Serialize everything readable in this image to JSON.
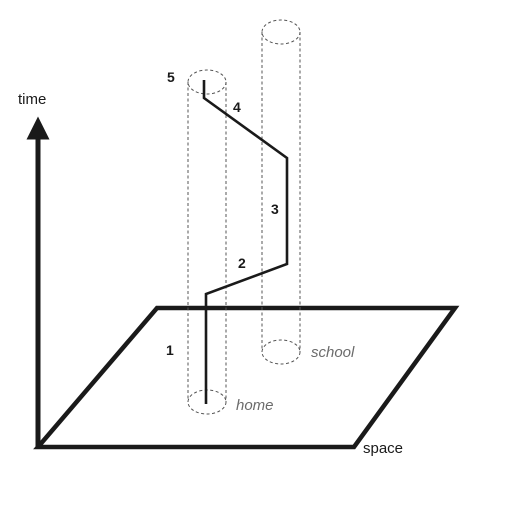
{
  "axes": {
    "time_label": "time",
    "space_label": "space"
  },
  "places": {
    "home": "home",
    "school": "school"
  },
  "segments": [
    "1",
    "2",
    "3",
    "4",
    "5"
  ],
  "colors": {
    "ink": "#1a1a1a",
    "cylinder": "#555555",
    "place_label": "#6b6b6b"
  }
}
